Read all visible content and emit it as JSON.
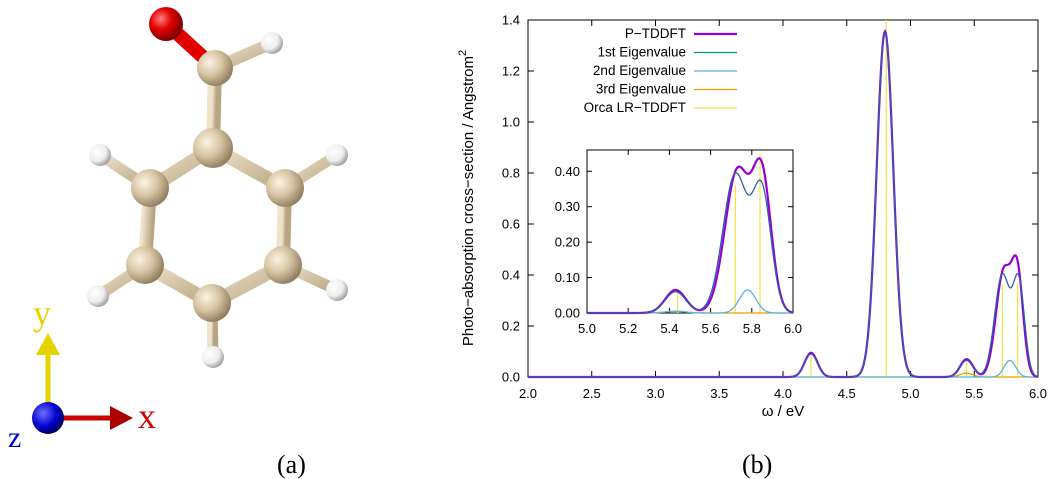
{
  "captions": {
    "left": "(a)",
    "right": "(b)"
  },
  "axes_triad": {
    "x": "x",
    "y": "y",
    "z": "z"
  },
  "molecule": {
    "atom_colors": {
      "oxygen": "#e00000",
      "carbon": "#d7c4a3",
      "hydrogen": "#ffffff"
    },
    "axis_colors": {
      "x": "#cc0000",
      "y": "#e6d300",
      "z": "#0000cc"
    }
  },
  "chart_data": [
    {
      "id": "main",
      "type": "line",
      "xlabel": "ω / eV",
      "ylabel": "Photo−absorption cross−section / Angstrom",
      "ylabel_sup": "2",
      "xlim": [
        2.0,
        6.0
      ],
      "ylim": [
        0.0,
        1.4
      ],
      "xticks": [
        "2.0",
        "2.5",
        "3.0",
        "3.5",
        "4.0",
        "4.5",
        "5.0",
        "5.5",
        "6.0"
      ],
      "yticks": [
        "0.0",
        "0.2",
        "0.4",
        "0.6",
        "0.8",
        "1.0",
        "1.2",
        "1.4"
      ],
      "legend": {
        "placement": "top-left"
      },
      "series": [
        {
          "name": "P−TDDFT",
          "color": "#9400d3",
          "peaks": [
            [
              4.22,
              0.095,
              0.05
            ],
            [
              4.8,
              1.355,
              0.065
            ],
            [
              5.44,
              0.07,
              0.05
            ],
            [
              5.73,
              0.41,
              0.06
            ],
            [
              5.84,
              0.38,
              0.045
            ]
          ]
        },
        {
          "name": "1st Eigenvalue",
          "color": "#009e73",
          "peaks": [
            [
              4.22,
              0.09,
              0.05
            ],
            [
              4.8,
              1.35,
              0.065
            ],
            [
              5.44,
              0.065,
              0.05
            ],
            [
              5.72,
              0.4,
              0.06
            ],
            [
              5.85,
              0.36,
              0.045
            ]
          ]
        },
        {
          "name": "2nd Eigenvalue",
          "color": "#56b4e9",
          "peaks": [
            [
              5.78,
              0.065,
              0.045
            ]
          ]
        },
        {
          "name": "3rd Eigenvalue",
          "color": "#e69f00",
          "peaks": [
            [
              5.44,
              0.015,
              0.05
            ]
          ]
        },
        {
          "name": "Orca LR−TDDFT",
          "color": "#f0e442",
          "sticks": [
            [
              4.22,
              0.09
            ],
            [
              4.81,
              1.4
            ],
            [
              5.44,
              0.06
            ],
            [
              5.72,
              0.36
            ],
            [
              5.84,
              0.37
            ]
          ]
        }
      ]
    },
    {
      "id": "inset",
      "type": "line",
      "xlim": [
        5.0,
        6.0
      ],
      "ylim": [
        0.0,
        0.46
      ],
      "xticks": [
        "5.0",
        "5.2",
        "5.4",
        "5.6",
        "5.8",
        "6.0"
      ],
      "yticks": [
        "0.00",
        "0.10",
        "0.20",
        "0.30",
        "0.40"
      ],
      "series": [
        {
          "name": "P−TDDFT",
          "color": "#9400d3",
          "peaks": [
            [
              5.43,
              0.065,
              0.05
            ],
            [
              5.73,
              0.4,
              0.06
            ],
            [
              5.85,
              0.37,
              0.045
            ]
          ]
        },
        {
          "name": "1st Eigenvalue",
          "color": "#009e73",
          "peaks": [
            [
              5.43,
              0.06,
              0.05
            ],
            [
              5.72,
              0.39,
              0.06
            ],
            [
              5.85,
              0.33,
              0.045
            ]
          ]
        },
        {
          "name": "2nd Eigenvalue",
          "color": "#56b4e9",
          "peaks": [
            [
              5.43,
              0.005,
              0.05
            ],
            [
              5.78,
              0.065,
              0.04
            ]
          ]
        },
        {
          "name": "3rd Eigenvalue",
          "color": "#e69f00",
          "peaks": [
            [
              5.43,
              0.005,
              0.05
            ]
          ]
        },
        {
          "name": "Orca LR−TDDFT",
          "color": "#f0e442",
          "sticks": [
            [
              5.44,
              0.06
            ],
            [
              5.72,
              0.36
            ],
            [
              5.84,
              0.45
            ]
          ]
        }
      ]
    }
  ]
}
